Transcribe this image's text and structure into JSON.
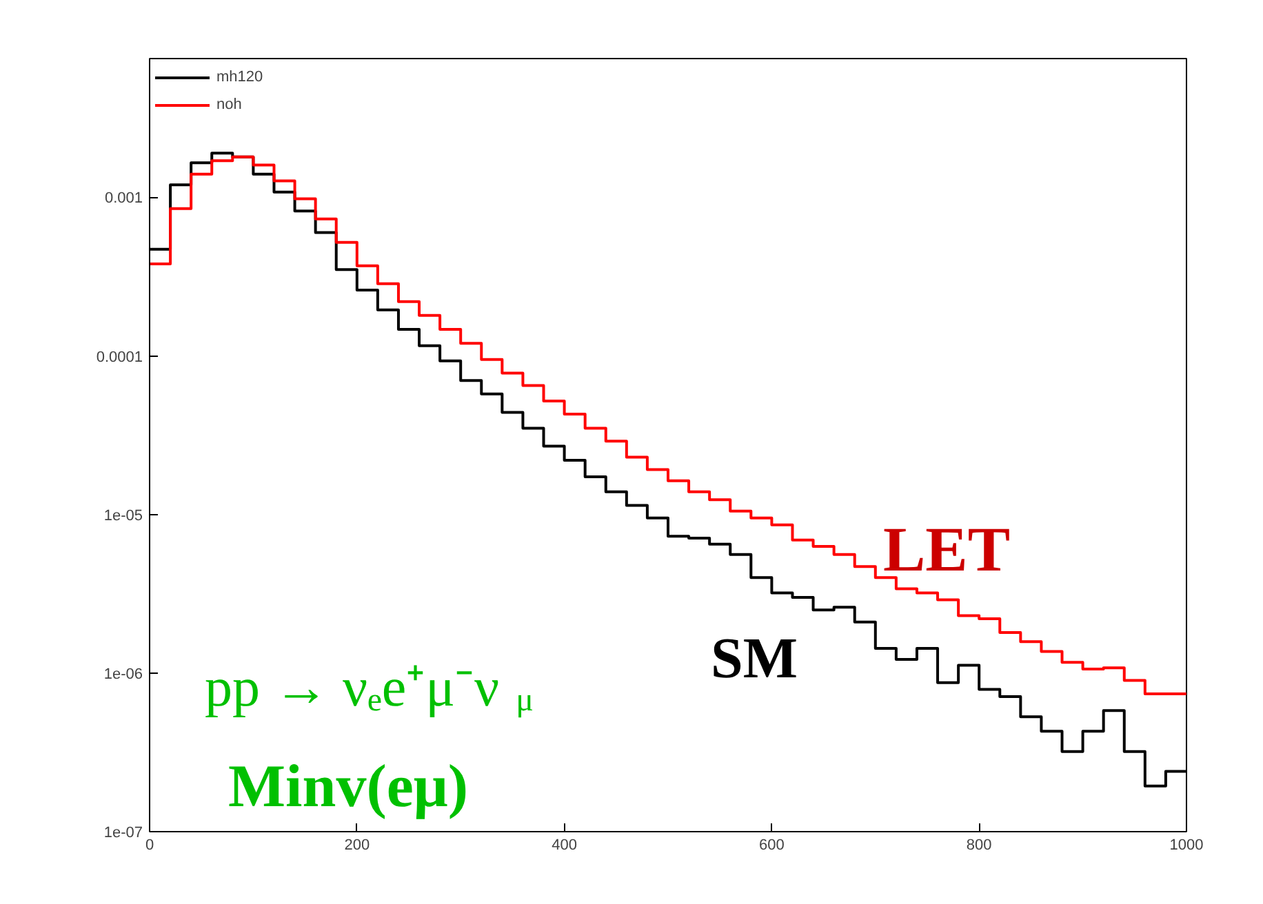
{
  "chart_data": {
    "type": "histogram",
    "bins": [
      0,
      20,
      40,
      60,
      80,
      100,
      120,
      140,
      160,
      180,
      200,
      220,
      240,
      260,
      280,
      300,
      320,
      340,
      360,
      380,
      400,
      420,
      440,
      460,
      480,
      500,
      520,
      540,
      560,
      580,
      600,
      620,
      640,
      660,
      680,
      700,
      720,
      740,
      760,
      780,
      800,
      820,
      840,
      860,
      880,
      900,
      920,
      940,
      960,
      980,
      1000
    ],
    "series": [
      {
        "name": "mh120",
        "color": "#000000",
        "values": [
          0.00047,
          0.0012,
          0.00165,
          0.0019,
          0.0018,
          0.0014,
          0.00108,
          0.00082,
          0.0006,
          0.00035,
          0.00026,
          0.000195,
          0.000147,
          0.000116,
          9.3e-05,
          7e-05,
          5.75e-05,
          4.4e-05,
          3.5e-05,
          2.7e-05,
          2.2e-05,
          1.73e-05,
          1.39e-05,
          1.14e-05,
          9.5e-06,
          7.3e-06,
          7.1e-06,
          6.5e-06,
          5.6e-06,
          4e-06,
          3.2e-06,
          3e-06,
          2.5e-06,
          2.6e-06,
          2.1e-06,
          1.43e-06,
          1.22e-06,
          1.43e-06,
          8.7e-07,
          1.12e-06,
          7.9e-07,
          7.1e-07,
          5.3e-07,
          4.3e-07,
          3.2e-07,
          4.3e-07,
          5.8e-07,
          3.2e-07,
          1.94e-07,
          2.4e-07
        ]
      },
      {
        "name": "noh",
        "color": "#ff0000",
        "values": [
          0.00038,
          0.00085,
          0.0014,
          0.0017,
          0.0018,
          0.0016,
          0.00127,
          0.00098,
          0.00073,
          0.00052,
          0.00037,
          0.000285,
          0.00022,
          0.00018,
          0.000147,
          0.00012,
          9.5e-05,
          7.8e-05,
          6.5e-05,
          5.2e-05,
          4.3e-05,
          3.5e-05,
          2.9e-05,
          2.3e-05,
          1.92e-05,
          1.63e-05,
          1.39e-05,
          1.24e-05,
          1.05e-05,
          9.5e-06,
          8.6e-06,
          6.9e-06,
          6.3e-06,
          5.6e-06,
          4.7e-06,
          4e-06,
          3.4e-06,
          3.2e-06,
          2.9e-06,
          2.3e-06,
          2.2e-06,
          1.8e-06,
          1.58e-06,
          1.37e-06,
          1.17e-06,
          1.06e-06,
          1.08e-06,
          9e-07,
          7.4e-07,
          7.4e-07
        ]
      }
    ],
    "xlim": [
      0,
      1000
    ],
    "xticks": [
      0,
      200,
      400,
      600,
      800,
      1000
    ],
    "ylim": [
      1e-07,
      0.0075
    ],
    "log": "y",
    "yticks": [
      {
        "value": 1e-07,
        "label": "1e-07"
      },
      {
        "value": 1e-06,
        "label": "1e-06"
      },
      {
        "value": 1e-05,
        "label": "1e-05"
      },
      {
        "value": 0.0001,
        "label": "0.0001"
      },
      {
        "value": 0.001,
        "label": "0.001"
      }
    ],
    "legend": "top left",
    "grid": false,
    "annotations": [
      "LET",
      "SM",
      "pp → νₑe⁺μ⁻ν$_{μ}$",
      "Minv(eμ)"
    ]
  }
}
